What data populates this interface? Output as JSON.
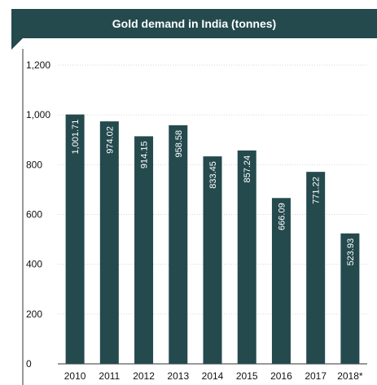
{
  "title": "Gold demand in India (tonnes)",
  "colors": {
    "header": "#244a4e",
    "bar": "#244a4e",
    "grid": "#d6d6d6",
    "axis": "#333333"
  },
  "chart_data": {
    "type": "bar",
    "title": "Gold demand in India (tonnes)",
    "xlabel": "",
    "ylabel": "",
    "categories": [
      "2010",
      "2011",
      "2012",
      "2013",
      "2014",
      "2015",
      "2016",
      "2017",
      "2018*"
    ],
    "values": [
      1001.71,
      974.02,
      914.15,
      958.58,
      833.45,
      857.24,
      666.09,
      771.22,
      523.93
    ],
    "data_labels": [
      "1,001.71",
      "974.02",
      "914.15",
      "958.58",
      "833.45",
      "857.24",
      "666.09",
      "771.22",
      "523.93"
    ],
    "yticks": [
      0,
      200,
      400,
      600,
      800,
      1000,
      1200
    ],
    "ytick_labels": [
      "0",
      "200",
      "400",
      "600",
      "800",
      "1,000",
      "1,200"
    ],
    "ylim": [
      0,
      1200
    ],
    "grid": true,
    "legend": "none"
  }
}
